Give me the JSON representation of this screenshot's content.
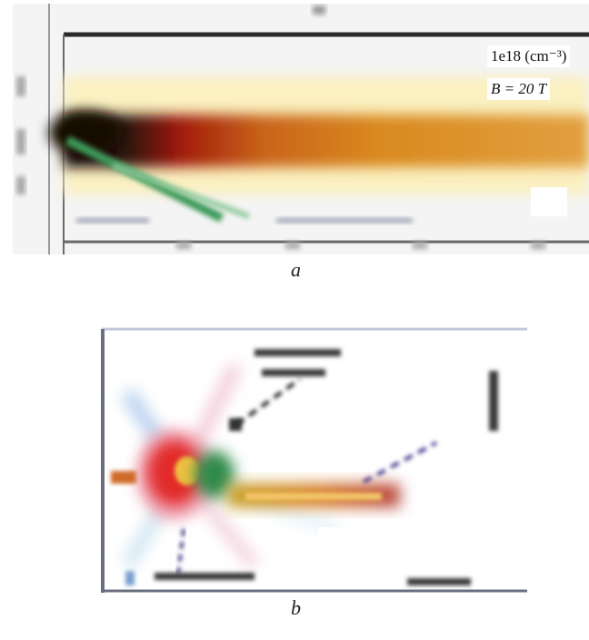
{
  "figure": {
    "panel_a": {
      "caption": "a",
      "density_label": "1e18 (cm⁻³)",
      "field_label": "B = 20 T"
    },
    "panel_b": {
      "caption": "b"
    }
  },
  "colors": {
    "dark": "#1a0f08",
    "deep_red": "#a01a0a",
    "orange": "#d9821e",
    "yellow": "#f2d96b",
    "pale_yellow": "#faf0c0",
    "green": "#3d9a5a",
    "pink": "#f0a5b5",
    "blue": "#6a88c8"
  }
}
